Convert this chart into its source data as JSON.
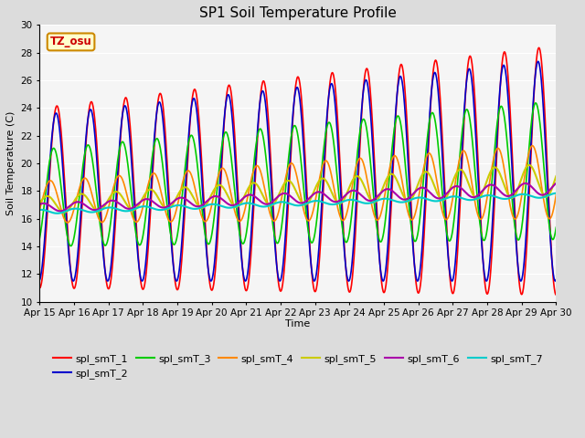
{
  "title": "SP1 Soil Temperature Profile",
  "xlabel": "Time",
  "ylabel": "Soil Temperature (C)",
  "ylim": [
    10,
    30
  ],
  "yticks": [
    10,
    12,
    14,
    16,
    18,
    20,
    22,
    24,
    26,
    28,
    30
  ],
  "date_labels": [
    "Apr 15",
    "Apr 16",
    "Apr 17",
    "Apr 18",
    "Apr 19",
    "Apr 20",
    "Apr 21",
    "Apr 22",
    "Apr 23",
    "Apr 24",
    "Apr 25",
    "Apr 26",
    "Apr 27",
    "Apr 28",
    "Apr 29",
    "Apr 30"
  ],
  "series_colors": {
    "spl_smT_1": "#ff0000",
    "spl_smT_2": "#0000cc",
    "spl_smT_3": "#00cc00",
    "spl_smT_4": "#ff8800",
    "spl_smT_5": "#cccc00",
    "spl_smT_6": "#aa00aa",
    "spl_smT_7": "#00cccc"
  },
  "tz_label": "TZ_osu",
  "background_color": "#dcdcdc",
  "plot_bg_color": "#f5f5f5",
  "n_days": 15
}
